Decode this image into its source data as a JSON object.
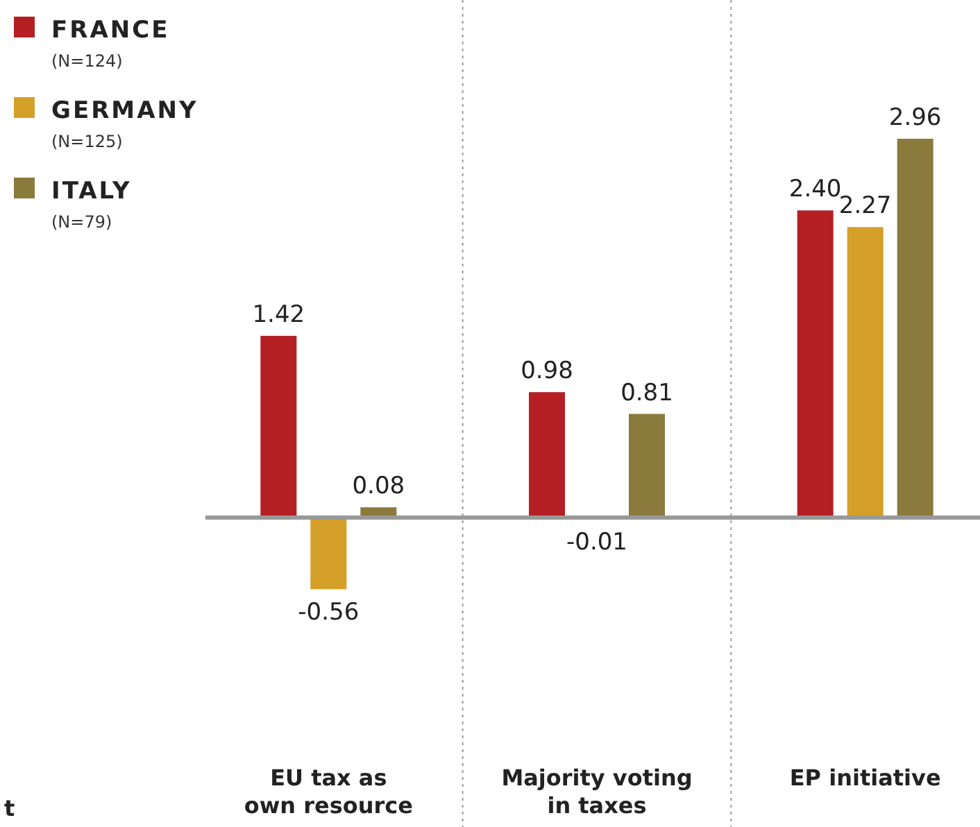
{
  "chart_data": {
    "type": "bar",
    "categories": [
      "EU tax as own resource",
      "Majority voting in taxes",
      "EP initiative"
    ],
    "series": [
      {
        "name": "FRANCE (N=124)",
        "color": "#b41f24",
        "values": [
          1.42,
          0.98,
          2.4
        ],
        "value_labels": [
          "1.42",
          "0.98",
          "2.40"
        ]
      },
      {
        "name": "GERMANY (N=125)",
        "color": "#d4a02a",
        "values": [
          -0.56,
          -0.01,
          2.27
        ],
        "value_labels": [
          "-0.56",
          "-0.01",
          "2.27"
        ]
      },
      {
        "name": "ITALY (N=79)",
        "color": "#8a7a3c",
        "values": [
          0.08,
          0.81,
          2.96
        ],
        "value_labels": [
          "0.08",
          "0.81",
          "2.96"
        ]
      }
    ],
    "legend": "top left",
    "annotations": [
      "t"
    ]
  }
}
